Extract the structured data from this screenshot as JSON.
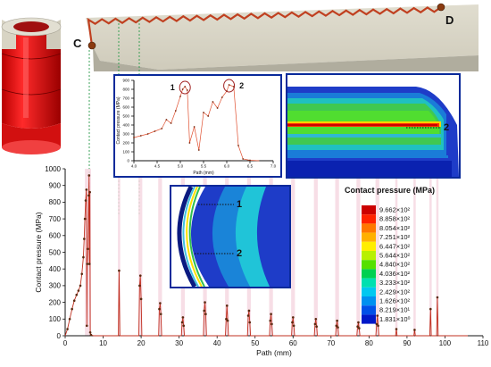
{
  "chart_data": [
    {
      "type": "line",
      "xlabel": "Path (mm)",
      "ylabel": "Contact pressure (MPa)",
      "xlim": [
        0,
        110
      ],
      "ylim": [
        0,
        1000
      ],
      "xticks": [
        "0",
        "10",
        "20",
        "30",
        "40",
        "50",
        "60",
        "70",
        "80",
        "90",
        "100",
        "110"
      ],
      "yticks": [
        "0",
        "100",
        "200",
        "300",
        "400",
        "500",
        "600",
        "700",
        "800",
        "900",
        "1000"
      ],
      "series": [
        {
          "values": [
            [
              0,
              0
            ],
            [
              0.6,
              40
            ],
            [
              1.2,
              100
            ],
            [
              1.8,
              160
            ],
            [
              2.4,
              210
            ],
            [
              3.0,
              245
            ],
            [
              3.5,
              270
            ],
            [
              4.0,
              300
            ],
            [
              4.4,
              370
            ],
            [
              4.8,
              470
            ],
            [
              5.0,
              580
            ],
            [
              5.2,
              700
            ],
            [
              5.4,
              810
            ],
            [
              5.6,
              875
            ],
            [
              5.7,
              60
            ],
            [
              5.8,
              430
            ],
            [
              6.0,
              520
            ],
            [
              6.2,
              840
            ],
            [
              6.3,
              960
            ],
            [
              6.4,
              430
            ],
            [
              6.5,
              860
            ],
            [
              6.6,
              20
            ],
            [
              6.8,
              5
            ],
            [
              7.5,
              0
            ],
            [
              14.0,
              0
            ],
            [
              14.2,
              390
            ],
            [
              14.4,
              0
            ],
            [
              19.4,
              0
            ],
            [
              19.6,
              300
            ],
            [
              19.8,
              360
            ],
            [
              20.0,
              220
            ],
            [
              20.2,
              0
            ],
            [
              24.6,
              0
            ],
            [
              24.8,
              160
            ],
            [
              25.0,
              195
            ],
            [
              25.2,
              130
            ],
            [
              25.4,
              0
            ],
            [
              30.6,
              0
            ],
            [
              30.8,
              80
            ],
            [
              31.0,
              110
            ],
            [
              31.2,
              60
            ],
            [
              31.4,
              0
            ],
            [
              36.4,
              0
            ],
            [
              36.6,
              150
            ],
            [
              36.8,
              200
            ],
            [
              37.0,
              130
            ],
            [
              37.2,
              0
            ],
            [
              42.2,
              0
            ],
            [
              42.4,
              100
            ],
            [
              42.6,
              180
            ],
            [
              42.8,
              90
            ],
            [
              43.0,
              0
            ],
            [
              48.0,
              0
            ],
            [
              48.2,
              120
            ],
            [
              48.4,
              150
            ],
            [
              48.6,
              80
            ],
            [
              48.8,
              0
            ],
            [
              53.8,
              0
            ],
            [
              54.0,
              90
            ],
            [
              54.2,
              130
            ],
            [
              54.4,
              70
            ],
            [
              54.6,
              0
            ],
            [
              59.6,
              0
            ],
            [
              59.8,
              80
            ],
            [
              60.0,
              110
            ],
            [
              60.2,
              60
            ],
            [
              60.4,
              0
            ],
            [
              65.6,
              0
            ],
            [
              65.8,
              70
            ],
            [
              66.0,
              100
            ],
            [
              66.2,
              55
            ],
            [
              66.4,
              0
            ],
            [
              71.2,
              0
            ],
            [
              71.4,
              60
            ],
            [
              71.6,
              90
            ],
            [
              71.8,
              50
            ],
            [
              72.0,
              0
            ],
            [
              76.8,
              0
            ],
            [
              77.0,
              55
            ],
            [
              77.2,
              80
            ],
            [
              77.4,
              45
            ],
            [
              77.6,
              0
            ],
            [
              81.8,
              0
            ],
            [
              82.0,
              70
            ],
            [
              82.2,
              120
            ],
            [
              82.4,
              60
            ],
            [
              82.6,
              0
            ],
            [
              87.0,
              0
            ],
            [
              87.2,
              40
            ],
            [
              87.4,
              0
            ],
            [
              91.8,
              0
            ],
            [
              92.0,
              35
            ],
            [
              92.2,
              0
            ],
            [
              96.0,
              0
            ],
            [
              96.2,
              160
            ],
            [
              96.4,
              0
            ],
            [
              97.8,
              0
            ],
            [
              98.0,
              230
            ],
            [
              98.2,
              0
            ],
            [
              106.0,
              0
            ]
          ]
        }
      ]
    },
    {
      "type": "line",
      "xlabel": "Path (mm)",
      "ylabel": "Contact pressure (MPa)",
      "xlim": [
        4.0,
        7.0
      ],
      "ylim": [
        0,
        900
      ],
      "xticks": [
        "4.0",
        "4.5",
        "5.0",
        "5.5",
        "6.0",
        "6.5",
        "7.0"
      ],
      "yticks": [
        "0",
        "100",
        "200",
        "300",
        "400",
        "500",
        "600",
        "700",
        "800",
        "900"
      ],
      "series": [
        {
          "values": [
            [
              4.0,
              260
            ],
            [
              4.15,
              280
            ],
            [
              4.3,
              300
            ],
            [
              4.45,
              330
            ],
            [
              4.6,
              360
            ],
            [
              4.7,
              460
            ],
            [
              4.8,
              420
            ],
            [
              4.9,
              560
            ],
            [
              5.0,
              720
            ],
            [
              5.05,
              800
            ],
            [
              5.1,
              830
            ],
            [
              5.15,
              790
            ],
            [
              5.2,
              200
            ],
            [
              5.3,
              380
            ],
            [
              5.4,
              120
            ],
            [
              5.5,
              540
            ],
            [
              5.6,
              500
            ],
            [
              5.7,
              660
            ],
            [
              5.8,
              590
            ],
            [
              5.9,
              710
            ],
            [
              6.0,
              780
            ],
            [
              6.05,
              850
            ],
            [
              6.15,
              830
            ],
            [
              6.25,
              170
            ],
            [
              6.35,
              20
            ],
            [
              6.5,
              5
            ],
            [
              6.7,
              0
            ]
          ]
        }
      ],
      "annotations": [
        "1",
        "2"
      ]
    }
  ],
  "figure": {
    "labels": {
      "c": "C",
      "d": "D"
    },
    "inset_annotations": {
      "top_right": "2",
      "lower_one": "1",
      "lower_two": "2"
    },
    "legend": {
      "title": "Contact pressure (MPa)",
      "entries": [
        {
          "label": "9.662×10²",
          "color": "#cc0000"
        },
        {
          "label": "8.858×10²",
          "color": "#ff2200"
        },
        {
          "label": "8.054×10²",
          "color": "#ff7700"
        },
        {
          "label": "7.251×10²",
          "color": "#ffb000"
        },
        {
          "label": "6.447×10²",
          "color": "#ffee00"
        },
        {
          "label": "5.644×10²",
          "color": "#b8f000"
        },
        {
          "label": "4.840×10²",
          "color": "#55e000"
        },
        {
          "label": "4.036×10²",
          "color": "#00d050"
        },
        {
          "label": "3.233×10²",
          "color": "#00e0b0"
        },
        {
          "label": "2.429×10²",
          "color": "#00c8f0"
        },
        {
          "label": "1.626×10²",
          "color": "#0090f0"
        },
        {
          "label": "8.219×10¹",
          "color": "#0050e8"
        },
        {
          "label": "1.831×10⁰",
          "color": "#0018c8"
        }
      ]
    }
  }
}
